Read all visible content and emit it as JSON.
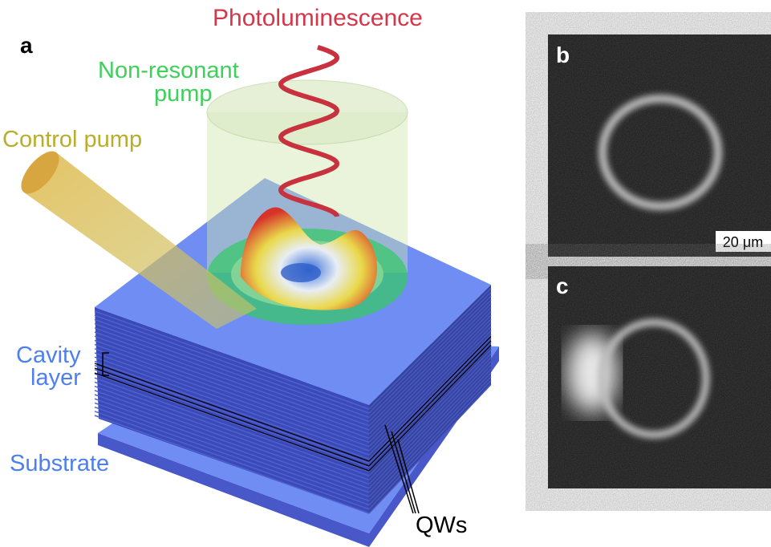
{
  "panel_a": {
    "label": "a",
    "photoluminescence": "Photoluminescence",
    "non_resonant": [
      "Non-resonant",
      "pump"
    ],
    "control_pump": "Control pump",
    "cavity": [
      "Cavity",
      "layer"
    ],
    "substrate": "Substrate",
    "qws": "QWs"
  },
  "panel_b": {
    "label": "b",
    "scale_bar": "20 μm"
  },
  "panel_c": {
    "label": "c"
  }
}
